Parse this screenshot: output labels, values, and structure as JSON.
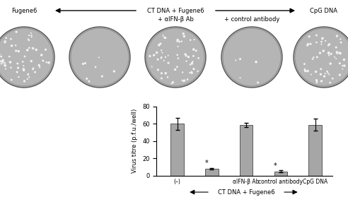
{
  "chart_data": {
    "type": "bar",
    "ylabel": "Virus titre (p.f.u./well)",
    "categories": [
      "(–)",
      null,
      "αIFN-β Ab",
      "control antibody",
      "CpG DNA"
    ],
    "values": [
      60,
      8,
      59,
      5,
      59
    ],
    "errors": [
      7,
      1,
      2.5,
      1,
      7
    ],
    "significance": [
      null,
      "*",
      null,
      "*",
      null
    ],
    "group_label": "CT DNA + Fugene6",
    "color": "#a6a6a6",
    "ylim": [
      0,
      80
    ],
    "yticks": [
      0,
      20,
      40,
      60,
      80
    ]
  },
  "plaque_panel": {
    "left": "Fugene6",
    "center": "CT DNA + Fugene6",
    "center_sub": [
      "+ αIFN-β Ab",
      "+ control antibody"
    ],
    "right": "CpG DNA"
  }
}
